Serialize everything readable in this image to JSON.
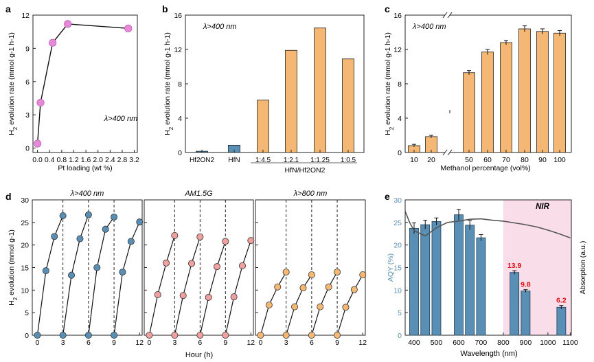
{
  "colors": {
    "pink": "#e58ad8",
    "orange": "#f4b874",
    "blue": "#5a8fb5",
    "salmon": "#f1a0a0",
    "axis": "#222222",
    "label_red": "#e01010",
    "nir_band": "#f9dde9",
    "absorption": "#555555",
    "aqy_axis": "#5a8fb5"
  },
  "chart_data": [
    {
      "panel": "a",
      "type": "line",
      "title": "",
      "annotation": "λ>400 nm",
      "xlabel": "Pt loading (wt %)",
      "ylabel": "H2 evolution rate (mmol g-1 h-1)",
      "xlim": [
        -0.15,
        3.3
      ],
      "ylim": [
        -0.4,
        12
      ],
      "xticks": [
        "0.0",
        "0.4",
        "0.8",
        "1.2",
        "1.6",
        "2.0",
        "2.4",
        "2.8",
        "3.2"
      ],
      "xtick_values": [
        0,
        0.4,
        0.8,
        1.2,
        1.6,
        2.0,
        2.4,
        2.8,
        3.2
      ],
      "yticks": [
        "0",
        "3",
        "6",
        "9",
        "12"
      ],
      "ytick_values": [
        0,
        3,
        6,
        9,
        12
      ],
      "x": [
        0.0,
        0.1,
        0.5,
        1.0,
        3.0
      ],
      "y": [
        0.4,
        4.1,
        9.5,
        11.2,
        10.8
      ]
    },
    {
      "panel": "b",
      "type": "bar",
      "annotation": "λ>400 nm",
      "xlabel": "",
      "group_label": "HfN/Hf2ON2",
      "ylabel": "H2 evolution rate (mmol g-1 h-1)",
      "ylim": [
        0,
        16
      ],
      "yticks": [
        "0",
        "4",
        "8",
        "12",
        "16"
      ],
      "ytick_values": [
        0,
        4,
        8,
        12,
        16
      ],
      "categories": [
        "Hf2ON2",
        "HfN",
        "1:4.5",
        "1:2.1",
        "1:1.25",
        "1:0.5"
      ],
      "values": [
        0.15,
        0.85,
        6.1,
        11.9,
        14.5,
        10.9
      ],
      "bar_colors": [
        "#5a8fb5",
        "#5a8fb5",
        "#f4b874",
        "#f4b874",
        "#f4b874",
        "#f4b874"
      ]
    },
    {
      "panel": "c",
      "type": "bar",
      "annotation": "λ>400 nm",
      "xlabel": "Methanol percentage (vol%)",
      "ylabel": "H2 evolution rate (mmol g-1 h-1)",
      "ylim": [
        0,
        16
      ],
      "yticks": [
        "0",
        "4",
        "8",
        "12",
        "16"
      ],
      "ytick_values": [
        0,
        4,
        8,
        12,
        16
      ],
      "categories": [
        "10",
        "20",
        "50",
        "60",
        "70",
        "80",
        "90",
        "100"
      ],
      "values": [
        0.8,
        1.85,
        9.3,
        11.7,
        12.8,
        14.4,
        14.1,
        13.9
      ],
      "errors": [
        0.15,
        0.15,
        0.25,
        0.3,
        0.25,
        0.35,
        0.3,
        0.3
      ],
      "axis_break": "between 20 and 50"
    },
    {
      "panel": "d",
      "type": "line",
      "xlabel": "Hour (h)",
      "ylabel": "H2 evolution (mmol g-1)",
      "ylim": [
        0,
        30
      ],
      "yticks": [
        "0",
        "5",
        "10",
        "15",
        "20",
        "25",
        "30"
      ],
      "ytick_values": [
        0,
        5,
        10,
        15,
        20,
        25,
        30
      ],
      "xlim": [
        -0.6,
        12.3
      ],
      "xticks": [
        "0",
        "3",
        "6",
        "9",
        "12"
      ],
      "xtick_values": [
        0,
        3,
        6,
        9,
        12
      ],
      "cycle_lines": [
        3,
        6,
        9
      ],
      "subpanels": [
        {
          "label": "λ>400 nm",
          "color": "#5a8fb5",
          "cycles": [
            {
              "x": [
                0,
                1,
                2,
                3
              ],
              "y": [
                0,
                14.3,
                21.9,
                26.5
              ]
            },
            {
              "x": [
                3,
                4,
                5,
                6
              ],
              "y": [
                0,
                13.3,
                21.4,
                26.7
              ]
            },
            {
              "x": [
                6,
                7,
                8,
                9
              ],
              "y": [
                0,
                15.0,
                23.5,
                26.2
              ]
            },
            {
              "x": [
                9,
                10,
                11,
                12
              ],
              "y": [
                0,
                14.0,
                20.8,
                25.1
              ]
            }
          ]
        },
        {
          "label": "AM1.5G",
          "color": "#f1a0a0",
          "cycles": [
            {
              "x": [
                0,
                1,
                2,
                3
              ],
              "y": [
                0,
                9.0,
                16.0,
                22.1
              ]
            },
            {
              "x": [
                3,
                4,
                5,
                6
              ],
              "y": [
                0,
                8.8,
                15.9,
                21.8
              ]
            },
            {
              "x": [
                6,
                7,
                8,
                9
              ],
              "y": [
                0,
                8.4,
                15.2,
                20.8
              ]
            },
            {
              "x": [
                9,
                10,
                11,
                12
              ],
              "y": [
                0,
                8.5,
                15.4,
                21.0
              ]
            }
          ]
        },
        {
          "label": "λ>800 nm",
          "color": "#f4b874",
          "cycles": [
            {
              "x": [
                0,
                1,
                2,
                3
              ],
              "y": [
                0,
                6.7,
                10.7,
                14.0
              ]
            },
            {
              "x": [
                3,
                4,
                5,
                6
              ],
              "y": [
                0,
                6.3,
                10.5,
                13.4
              ]
            },
            {
              "x": [
                6,
                7,
                8,
                9
              ],
              "y": [
                0,
                6.3,
                10.7,
                14.0
              ]
            },
            {
              "x": [
                9,
                10,
                11,
                12
              ],
              "y": [
                0,
                6.2,
                10.1,
                13.4
              ]
            }
          ]
        }
      ]
    },
    {
      "panel": "e",
      "type": "bar",
      "xlabel": "Wavelength (nm)",
      "ylabel": "AQY (%)",
      "ylabel_right": "Absorption (a.u.)",
      "xlim": [
        360,
        1105
      ],
      "ylim": [
        0,
        30
      ],
      "xticks": [
        "400",
        "500",
        "600",
        "700",
        "800",
        "900",
        "1000",
        "1100"
      ],
      "xtick_values": [
        400,
        500,
        600,
        700,
        800,
        900,
        1000,
        1100
      ],
      "yticks": [
        "0",
        "5",
        "10",
        "15",
        "20",
        "25",
        "30"
      ],
      "ytick_values": [
        0,
        5,
        10,
        15,
        20,
        25,
        30
      ],
      "region_label": "NIR",
      "region_start": 800,
      "bars": [
        {
          "x": 400,
          "value": 23.7,
          "error": 1.2
        },
        {
          "x": 450,
          "value": 24.5,
          "error": 1.0
        },
        {
          "x": 500,
          "value": 25.2,
          "error": 0.8
        },
        {
          "x": 600,
          "value": 26.7,
          "error": 1.2
        },
        {
          "x": 650,
          "value": 24.4,
          "error": 1.0
        },
        {
          "x": 700,
          "value": 21.6,
          "error": 0.7
        },
        {
          "x": 850,
          "value": 13.9,
          "error": 0.4,
          "label": "13.9"
        },
        {
          "x": 900,
          "value": 9.8,
          "error": 0.3,
          "label": "9.8"
        },
        {
          "x": 1060,
          "value": 6.2,
          "error": 0.4,
          "label": "6.2"
        }
      ],
      "absorption_curve": {
        "x": [
          360,
          380,
          400,
          450,
          500,
          550,
          600,
          650,
          700,
          750,
          800,
          850,
          900,
          950,
          1000,
          1050,
          1100
        ],
        "y": [
          27.5,
          25.0,
          23.2,
          22.0,
          23.8,
          25.0,
          25.3,
          25.7,
          25.8,
          25.5,
          25.3,
          24.9,
          24.5,
          24.0,
          23.3,
          22.5,
          21.6
        ]
      }
    }
  ],
  "panel_labels": [
    "a",
    "b",
    "c",
    "d",
    "e"
  ]
}
